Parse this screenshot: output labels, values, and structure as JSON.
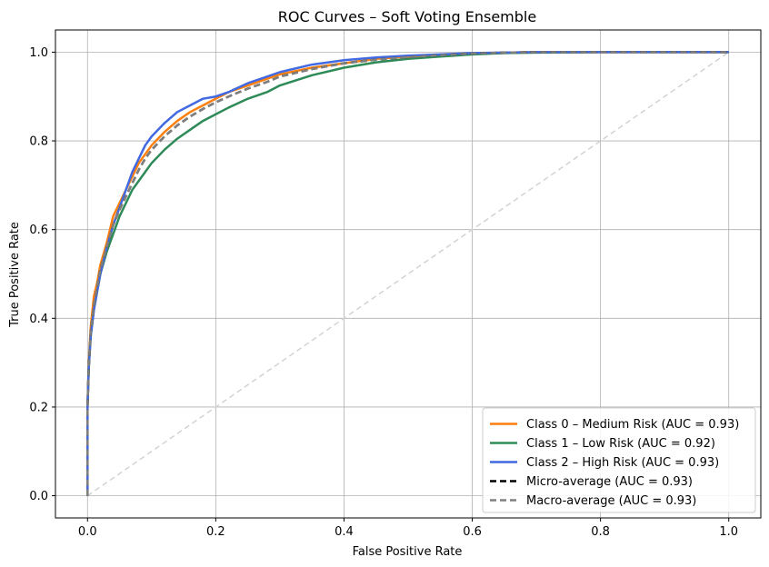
{
  "chart_data": {
    "type": "line",
    "title": "ROC Curves – Soft Voting Ensemble",
    "xlabel": "False Positive Rate",
    "ylabel": "True Positive Rate",
    "xlim": [
      -0.05,
      1.05
    ],
    "ylim": [
      -0.05,
      1.05
    ],
    "xticks": [
      0.0,
      0.2,
      0.4,
      0.6,
      0.8,
      1.0
    ],
    "yticks": [
      0.0,
      0.2,
      0.4,
      0.6,
      0.8,
      1.0
    ],
    "xtick_labels": [
      "0.0",
      "0.2",
      "0.4",
      "0.6",
      "0.8",
      "1.0"
    ],
    "ytick_labels": [
      "0.0",
      "0.2",
      "0.4",
      "0.6",
      "0.8",
      "1.0"
    ],
    "grid": true,
    "legend_position": "lower-right",
    "series": [
      {
        "name": "Class 0 – Medium Risk (AUC = 0.93)",
        "color": "#ff7f0e",
        "style": "solid",
        "x": [
          0,
          0,
          0.002,
          0.005,
          0.01,
          0.015,
          0.02,
          0.03,
          0.04,
          0.05,
          0.06,
          0.07,
          0.08,
          0.09,
          0.1,
          0.12,
          0.14,
          0.16,
          0.18,
          0.2,
          0.22,
          0.25,
          0.28,
          0.3,
          0.35,
          0.4,
          0.45,
          0.5,
          0.55,
          0.6,
          0.65,
          0.7,
          0.8,
          0.9,
          1.0
        ],
        "y": [
          0,
          0.2,
          0.3,
          0.38,
          0.45,
          0.48,
          0.52,
          0.57,
          0.63,
          0.66,
          0.69,
          0.72,
          0.75,
          0.77,
          0.79,
          0.82,
          0.845,
          0.865,
          0.88,
          0.895,
          0.91,
          0.925,
          0.94,
          0.95,
          0.965,
          0.975,
          0.985,
          0.99,
          0.994,
          0.997,
          0.999,
          1.0,
          1.0,
          1.0,
          1.0
        ]
      },
      {
        "name": "Class 1 – Low Risk (AUC = 0.92)",
        "color": "#2e8b57",
        "style": "solid",
        "x": [
          0,
          0,
          0.002,
          0.005,
          0.01,
          0.015,
          0.02,
          0.03,
          0.04,
          0.05,
          0.06,
          0.07,
          0.08,
          0.09,
          0.1,
          0.12,
          0.14,
          0.16,
          0.18,
          0.2,
          0.22,
          0.25,
          0.28,
          0.3,
          0.35,
          0.4,
          0.45,
          0.5,
          0.55,
          0.6,
          0.65,
          0.7,
          0.8,
          0.9,
          1.0
        ],
        "y": [
          0,
          0.2,
          0.29,
          0.36,
          0.42,
          0.46,
          0.5,
          0.55,
          0.59,
          0.63,
          0.66,
          0.69,
          0.71,
          0.73,
          0.75,
          0.78,
          0.805,
          0.825,
          0.845,
          0.86,
          0.875,
          0.895,
          0.91,
          0.925,
          0.948,
          0.965,
          0.977,
          0.985,
          0.99,
          0.995,
          0.998,
          0.999,
          1.0,
          1.0,
          1.0
        ]
      },
      {
        "name": "Class 2 – High Risk (AUC = 0.93)",
        "color": "#4169e1",
        "style": "solid",
        "x": [
          0,
          0,
          0.002,
          0.005,
          0.01,
          0.015,
          0.02,
          0.03,
          0.04,
          0.05,
          0.06,
          0.07,
          0.08,
          0.09,
          0.1,
          0.12,
          0.14,
          0.16,
          0.18,
          0.2,
          0.22,
          0.25,
          0.28,
          0.3,
          0.35,
          0.4,
          0.45,
          0.5,
          0.55,
          0.6,
          0.65,
          0.7,
          0.8,
          0.9,
          1.0
        ],
        "y": [
          0,
          0.2,
          0.29,
          0.36,
          0.42,
          0.46,
          0.5,
          0.56,
          0.61,
          0.65,
          0.69,
          0.73,
          0.76,
          0.79,
          0.81,
          0.84,
          0.865,
          0.88,
          0.895,
          0.9,
          0.91,
          0.93,
          0.945,
          0.955,
          0.972,
          0.982,
          0.988,
          0.992,
          0.995,
          0.998,
          0.999,
          1.0,
          1.0,
          1.0,
          1.0
        ]
      },
      {
        "name": "Micro-average (AUC = 0.93)",
        "color": "#000000",
        "style": "dashed",
        "x": [
          0,
          0,
          0.002,
          0.005,
          0.01,
          0.015,
          0.02,
          0.03,
          0.04,
          0.05,
          0.06,
          0.07,
          0.08,
          0.09,
          0.1,
          0.12,
          0.14,
          0.16,
          0.18,
          0.2,
          0.22,
          0.25,
          0.28,
          0.3,
          0.35,
          0.4,
          0.45,
          0.5,
          0.55,
          0.6,
          0.65,
          0.7,
          0.8,
          0.9,
          1.0
        ],
        "y": [
          0,
          0.2,
          0.29,
          0.37,
          0.43,
          0.47,
          0.51,
          0.56,
          0.61,
          0.645,
          0.675,
          0.705,
          0.735,
          0.76,
          0.78,
          0.81,
          0.835,
          0.855,
          0.872,
          0.887,
          0.9,
          0.918,
          0.933,
          0.945,
          0.962,
          0.975,
          0.983,
          0.989,
          0.993,
          0.997,
          0.999,
          1.0,
          1.0,
          1.0,
          1.0
        ]
      },
      {
        "name": "Macro-average (AUC = 0.93)",
        "color": "#808080",
        "style": "dashed",
        "x": [
          0,
          0,
          0.002,
          0.005,
          0.01,
          0.015,
          0.02,
          0.03,
          0.04,
          0.05,
          0.06,
          0.07,
          0.08,
          0.09,
          0.1,
          0.12,
          0.14,
          0.16,
          0.18,
          0.2,
          0.22,
          0.25,
          0.28,
          0.3,
          0.35,
          0.4,
          0.45,
          0.5,
          0.55,
          0.6,
          0.65,
          0.7,
          0.8,
          0.9,
          1.0
        ],
        "y": [
          0,
          0.2,
          0.29,
          0.37,
          0.43,
          0.47,
          0.51,
          0.56,
          0.61,
          0.645,
          0.675,
          0.705,
          0.735,
          0.76,
          0.78,
          0.81,
          0.835,
          0.855,
          0.872,
          0.887,
          0.9,
          0.918,
          0.933,
          0.945,
          0.962,
          0.975,
          0.983,
          0.989,
          0.993,
          0.997,
          0.999,
          1.0,
          1.0,
          1.0,
          1.0
        ]
      }
    ],
    "reference_line": {
      "color": "#d3d3d3",
      "style": "dashed",
      "x": [
        0,
        1
      ],
      "y": [
        0,
        1
      ]
    },
    "colors": {
      "grid": "#b0b0b0",
      "axes": "#000000",
      "legend_border": "#cccccc"
    }
  }
}
